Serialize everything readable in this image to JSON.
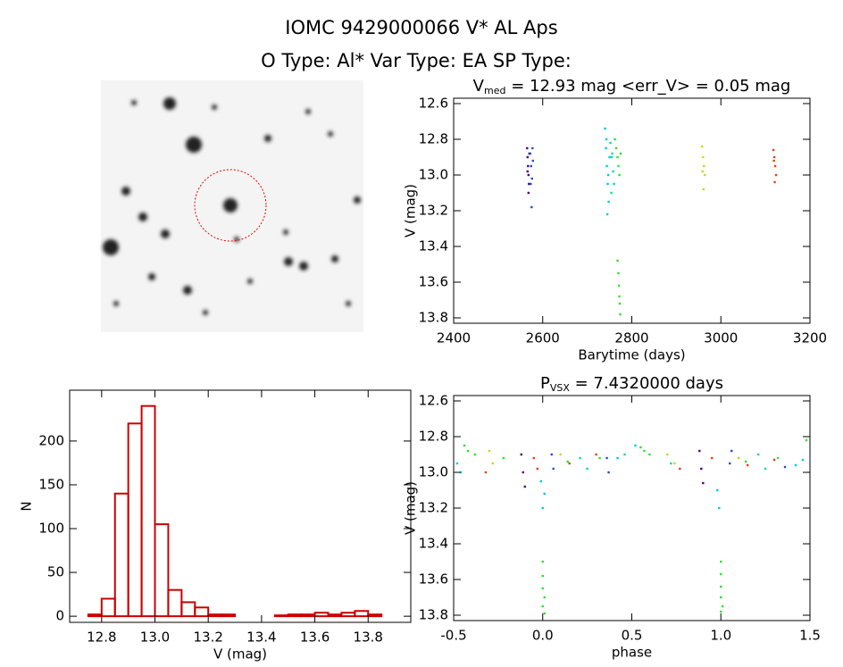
{
  "header": {
    "title": "IOMC 9429000066    V* AL Aps",
    "subtitle": "O Type: Al*  Var Type: EA  SP Type:"
  },
  "chart_data": [
    {
      "type": "scatter",
      "title": [
        "V",
        "med",
        " = 12.93 mag <err_V> = 0.05 mag"
      ],
      "x_label": "Barytime (days)",
      "y_label": "V (mag)",
      "xlim": [
        2400,
        3200
      ],
      "xticks": [
        2400,
        2600,
        2800,
        3000,
        3200
      ],
      "ylim": [
        13.83,
        12.57
      ],
      "yticks": [
        12.6,
        12.8,
        {
          "value": 13,
          "label": "13.0"
        },
        13.2,
        13.4,
        13.6,
        13.8
      ],
      "series": [
        {
          "color": "#4b0082",
          "x": [
            2565,
            2566,
            2567,
            2568,
            2569,
            2570,
            2566,
            2568
          ],
          "values": [
            12.85,
            12.9,
            12.95,
            13.0,
            13.05,
            12.88,
            12.98,
            13.1
          ]
        },
        {
          "color": "#1f4fd0",
          "x": [
            2572,
            2574,
            2576,
            2578,
            2575,
            2577,
            2573
          ],
          "values": [
            12.88,
            12.95,
            13.02,
            12.92,
            13.18,
            12.85,
            13.05
          ]
        },
        {
          "color": "#00c8e0",
          "x": [
            2740,
            2742,
            2744,
            2746,
            2748,
            2750,
            2745,
            2743,
            2747
          ],
          "values": [
            12.74,
            12.85,
            12.95,
            13.05,
            13.15,
            12.9,
            13.22,
            12.8,
            13.0
          ]
        },
        {
          "color": "#00e0a0",
          "x": [
            2752,
            2755,
            2758,
            2760,
            2756,
            2754
          ],
          "values": [
            12.82,
            12.9,
            12.98,
            13.05,
            12.88,
            13.1
          ]
        },
        {
          "color": "#30e030",
          "x": [
            2762,
            2765,
            2768,
            2770,
            2772,
            2775,
            2768,
            2770,
            2771,
            2772,
            2773,
            2774
          ],
          "values": [
            12.8,
            12.85,
            12.9,
            12.95,
            13.0,
            12.88,
            13.48,
            13.55,
            13.62,
            13.68,
            13.72,
            13.78
          ]
        },
        {
          "color": "#b8e020",
          "x": [
            2958,
            2960,
            2962,
            2964,
            2961,
            2959
          ],
          "values": [
            12.84,
            12.9,
            12.95,
            13.0,
            13.08,
            12.98
          ]
        },
        {
          "color": "#e84010",
          "x": [
            3118,
            3120,
            3122,
            3124,
            3121,
            3119
          ],
          "values": [
            12.86,
            12.9,
            12.95,
            13.0,
            13.04,
            12.92
          ]
        }
      ]
    },
    {
      "type": "scatter",
      "title": [
        "P",
        "VSX",
        " = 7.4320000 days"
      ],
      "x_label": "phase",
      "y_label": "V (mag)",
      "xlim": [
        -0.5,
        1.5
      ],
      "xticks": [
        -0.5,
        {
          "value": 0,
          "label": "0.0"
        },
        0.5,
        {
          "value": 1,
          "label": "1.0"
        },
        1.5
      ],
      "ylim": [
        13.83,
        12.57
      ],
      "yticks": [
        12.6,
        12.8,
        {
          "value": 13,
          "label": "13.0"
        },
        13.2,
        13.4,
        13.6,
        13.8
      ],
      "series": [
        {
          "color": "#4b0082",
          "x": [
            -0.12,
            -0.11,
            -0.1,
            0.88,
            0.89,
            0.9
          ],
          "values": [
            12.9,
            13.0,
            13.08,
            12.88,
            12.98,
            13.06
          ]
        },
        {
          "color": "#1f4fd0",
          "x": [
            0.05,
            0.06,
            0.36,
            0.37,
            1.05,
            1.06,
            1.36
          ],
          "values": [
            12.9,
            12.98,
            12.92,
            13.0,
            12.95,
            12.88,
            12.97
          ]
        },
        {
          "color": "#00c8e0",
          "x": [
            -0.48,
            -0.46,
            -0.01,
            0.0,
            0.01,
            0.42,
            0.52,
            0.98,
            0.99,
            1.42
          ],
          "values": [
            12.95,
            13.0,
            13.05,
            13.2,
            13.12,
            12.92,
            12.85,
            13.1,
            13.2,
            12.96
          ]
        },
        {
          "color": "#00e0a0",
          "x": [
            0.21,
            0.25,
            0.46,
            0.72,
            1.21,
            1.25,
            1.46
          ],
          "values": [
            12.92,
            12.98,
            12.9,
            12.95,
            12.9,
            12.98,
            12.93
          ]
        },
        {
          "color": "#30e030",
          "x": [
            -0.44,
            -0.42,
            -0.38,
            -0.22,
            0.14,
            0.32,
            0.55,
            0.57,
            0.6,
            0.0,
            0.0,
            0.0,
            0.01,
            0.0,
            0.01,
            1.0,
            1.0,
            1.0,
            1.0,
            1.01,
            1.0,
            1.14,
            1.32,
            1.48
          ],
          "values": [
            12.85,
            12.88,
            12.9,
            12.92,
            12.94,
            12.92,
            12.86,
            12.88,
            12.9,
            13.5,
            13.58,
            13.65,
            13.7,
            13.75,
            13.79,
            13.5,
            13.57,
            13.64,
            13.7,
            13.75,
            13.78,
            12.94,
            12.92,
            12.82
          ]
        },
        {
          "color": "#b8e020",
          "x": [
            -0.3,
            -0.28,
            0.1,
            0.7,
            0.74,
            1.1
          ],
          "values": [
            12.88,
            12.95,
            12.9,
            12.9,
            12.95,
            12.92
          ]
        },
        {
          "color": "#e84010",
          "x": [
            -0.32,
            -0.05,
            -0.03,
            0.15,
            0.3,
            0.77,
            0.95,
            1.15,
            1.3
          ],
          "values": [
            13.0,
            12.92,
            12.98,
            12.95,
            12.9,
            12.98,
            12.92,
            12.96,
            12.93
          ]
        }
      ]
    },
    {
      "type": "histogram",
      "x_label": "V (mag)",
      "y_label": "N",
      "color": "#cc0000",
      "xlim": [
        12.68,
        13.96
      ],
      "xticks": [
        12.8,
        {
          "value": 13,
          "label": "13.0"
        },
        13.2,
        13.4,
        13.6,
        13.8
      ],
      "ylim": [
        -7,
        258
      ],
      "yticks": [
        0,
        50,
        100,
        150,
        200
      ],
      "bins": [
        12.75,
        12.8,
        12.85,
        12.9,
        12.95,
        13.0,
        13.05,
        13.1,
        13.15,
        13.2,
        13.25,
        13.3,
        13.35,
        13.4,
        13.45,
        13.5,
        13.55,
        13.6,
        13.65,
        13.7,
        13.75,
        13.8,
        13.85
      ],
      "values": [
        2,
        20,
        140,
        220,
        240,
        105,
        30,
        16,
        10,
        2,
        2,
        0,
        0,
        0,
        1,
        2,
        2,
        4,
        2,
        4,
        6,
        2
      ]
    }
  ]
}
